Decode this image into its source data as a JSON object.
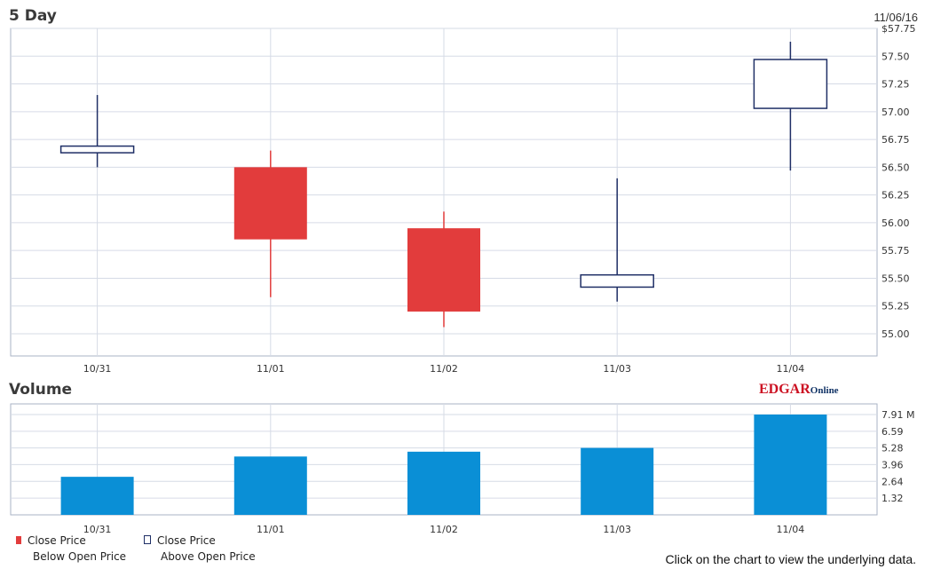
{
  "header": {
    "title": "5 Day",
    "date": "11/06/16"
  },
  "volume_title": "Volume",
  "brand": {
    "main": "EDGAR",
    "suffix": "Online"
  },
  "legend": {
    "below": {
      "line1": "Close Price",
      "line2": "Below Open Price"
    },
    "above": {
      "line1": "Close Price",
      "line2": "Above Open Price"
    }
  },
  "footnote": "Click on the chart to view the underlying data.",
  "colors": {
    "down": "#e23c3c",
    "up_stroke": "#1f2f66",
    "volume": "#0a8fd6",
    "grid": "#d6dbe6",
    "frame": "#a9b3c6"
  },
  "chart_data": [
    {
      "type": "candlestick",
      "title": "5 Day",
      "categories": [
        "10/31",
        "11/01",
        "11/02",
        "11/03",
        "11/04"
      ],
      "open": [
        56.63,
        56.5,
        55.95,
        55.42,
        57.03
      ],
      "close": [
        56.69,
        55.85,
        55.2,
        55.53,
        57.47
      ],
      "high": [
        57.15,
        56.65,
        56.1,
        56.4,
        57.63
      ],
      "low": [
        56.5,
        55.33,
        55.06,
        55.29,
        56.47
      ],
      "ylim": [
        54.8,
        57.75
      ],
      "yticks": [
        55.0,
        55.25,
        55.5,
        55.75,
        56.0,
        56.25,
        56.5,
        56.75,
        57.0,
        57.25,
        57.5,
        57.75
      ],
      "ytick_labels": [
        "55.00",
        "55.25",
        "55.50",
        "55.75",
        "56.00",
        "56.25",
        "56.50",
        "56.75",
        "57.00",
        "57.25",
        "57.50",
        "$57.75"
      ],
      "grid": true
    },
    {
      "type": "bar",
      "title": "Volume",
      "categories": [
        "10/31",
        "11/01",
        "11/02",
        "11/03",
        "11/04"
      ],
      "values": [
        3.0,
        4.6,
        4.98,
        5.28,
        7.91
      ],
      "ylim": [
        0,
        7.91
      ],
      "yticks": [
        1.32,
        2.64,
        3.96,
        5.28,
        6.59,
        7.91
      ],
      "ytick_labels": [
        "1.32",
        "2.64",
        "3.96",
        "5.28",
        "6.59",
        "7.91 M"
      ],
      "grid": true
    }
  ]
}
